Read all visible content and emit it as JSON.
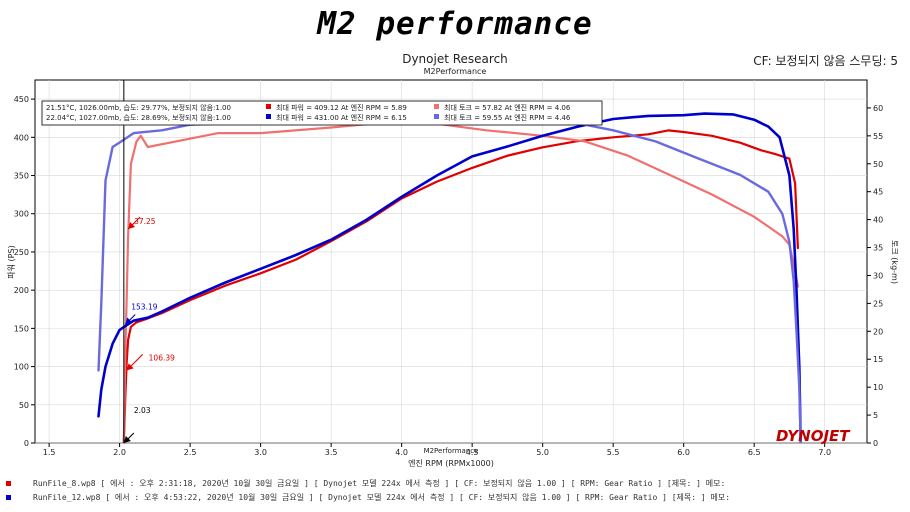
{
  "banner": "M2 performance",
  "subtitle": "Dynojet Research",
  "subtitle2": "M2Performance",
  "cf_label": "CF: 보정되지 않음 스무딩: 5",
  "colors": {
    "red_power": "#e00000",
    "red_torque": "#f07070",
    "blue_power": "#0000cc",
    "blue_torque": "#6a6ae0",
    "axis": "#000000",
    "grid": "#d8d8d8",
    "background": "#ffffff"
  },
  "legend": {
    "rows": [
      {
        "conditions": "21.51°C, 1026.00mb, 습도: 29.77%, 보정되지 않음:1.00",
        "power": "최대 파워 = 409.12 At 엔진 RPM = 5.89",
        "torque": "최대 토크 = 57.82 At 엔진 RPM = 4.06",
        "power_color": "#e00000",
        "torque_color": "#f07070"
      },
      {
        "conditions": "22.04°C, 1027.00mb, 습도: 28.69%, 보정되지 않음:1.00",
        "power": "최대 파워 = 431.00 At 엔진 RPM = 6.15",
        "torque": "최대 토크 = 59.55 At 엔진 RPM = 4.46",
        "power_color": "#0000cc",
        "torque_color": "#6a6ae0"
      }
    ]
  },
  "annotations": [
    {
      "text": "37.25",
      "x": 2.06,
      "y": 280,
      "color": "#e00000"
    },
    {
      "text": "153.19",
      "x": 2.04,
      "y": 155,
      "color": "#0000cc"
    },
    {
      "text": "106.39",
      "x": 2.05,
      "y": 95,
      "color": "#e00000"
    },
    {
      "text": "2.03",
      "x": 2.03,
      "y": 0,
      "color": "#000000"
    }
  ],
  "logo_text": "DYNOJET",
  "footer": [
    {
      "text": "RunFile_8.wp8 [ 에서 : 오후 2:31:18, 2020년 10월 30일 금요일 ] [ Dynojet 모델 224x 에서 측정 ] [ CF: 보정되지 않음 1.00 ] [ RPM: Gear Ratio ] [제목: ] 메모:",
      "color": "#e00000"
    },
    {
      "text": "RunFile_12.wp8 [ 에서 : 오후 4:53:22, 2020년 10월 30일 금요일 ] [ Dynojet 모델 224x 에서 측정 ] [ CF: 보정되지 않음 1.00 ] [ RPM: Gear Ratio ] [제목: ] 메모:",
      "color": "#0000cc"
    }
  ],
  "chart_data": {
    "type": "line",
    "title": "Dynojet Research",
    "subtitle": "M2Performance",
    "xlabel": "엔진 RPM (RPMx1000)",
    "xlabel_top": "M2Performance",
    "ylabel_left": "파워 (PS)",
    "ylabel_right": "토크 (kg-m)",
    "xlim": [
      1.4,
      7.3
    ],
    "ylim_left": [
      0,
      475
    ],
    "ylim_right": [
      0,
      65
    ],
    "x_ticks": [
      1.5,
      2.0,
      2.5,
      3.0,
      3.5,
      4.0,
      4.5,
      5.0,
      5.5,
      6.0,
      6.5,
      7.0
    ],
    "x_tick_labels": [
      "1.5",
      "2.0",
      "2.5",
      "3.0",
      "3.5",
      "4.0",
      "4.5",
      "5.0",
      "5.5",
      "6.0",
      "6.5",
      "7.0"
    ],
    "y_left_ticks": [
      0,
      50,
      100,
      150,
      200,
      250,
      300,
      350,
      400,
      450
    ],
    "y_right_ticks": [
      0,
      5,
      10,
      15,
      20,
      25,
      30,
      35,
      40,
      45,
      50,
      55,
      60
    ],
    "grid": true,
    "legend_position": "top-left",
    "series": [
      {
        "name": "RunFile_8 파워",
        "axis": "left",
        "color": "#e00000",
        "width": 2.2,
        "points": [
          [
            2.03,
            0
          ],
          [
            2.04,
            60
          ],
          [
            2.05,
            106
          ],
          [
            2.06,
            135
          ],
          [
            2.08,
            152
          ],
          [
            2.12,
            158
          ],
          [
            2.2,
            163
          ],
          [
            2.3,
            170
          ],
          [
            2.5,
            187
          ],
          [
            2.75,
            206
          ],
          [
            3.0,
            222
          ],
          [
            3.25,
            240
          ],
          [
            3.5,
            264
          ],
          [
            3.75,
            290
          ],
          [
            4.0,
            320
          ],
          [
            4.25,
            342
          ],
          [
            4.5,
            360
          ],
          [
            4.75,
            376
          ],
          [
            5.0,
            387
          ],
          [
            5.25,
            395
          ],
          [
            5.5,
            400
          ],
          [
            5.75,
            404
          ],
          [
            5.89,
            409
          ],
          [
            6.0,
            407
          ],
          [
            6.2,
            402
          ],
          [
            6.4,
            393
          ],
          [
            6.55,
            383
          ],
          [
            6.65,
            378
          ],
          [
            6.75,
            372
          ],
          [
            6.79,
            340
          ],
          [
            6.81,
            255
          ]
        ]
      },
      {
        "name": "RunFile_8 토크",
        "axis": "right",
        "color": "#f07070",
        "width": 2.2,
        "points": [
          [
            2.03,
            0
          ],
          [
            2.04,
            16
          ],
          [
            2.05,
            26
          ],
          [
            2.06,
            37
          ],
          [
            2.08,
            50
          ],
          [
            2.12,
            54
          ],
          [
            2.15,
            55
          ],
          [
            2.2,
            53
          ],
          [
            2.4,
            54
          ],
          [
            2.7,
            55.5
          ],
          [
            3.0,
            55.5
          ],
          [
            3.5,
            56.5
          ],
          [
            4.06,
            57.8
          ],
          [
            4.3,
            57
          ],
          [
            4.6,
            56
          ],
          [
            5.0,
            55
          ],
          [
            5.3,
            54
          ],
          [
            5.6,
            51.5
          ],
          [
            5.9,
            48
          ],
          [
            6.2,
            44.5
          ],
          [
            6.5,
            40.5
          ],
          [
            6.7,
            37
          ],
          [
            6.75,
            35.5
          ],
          [
            6.78,
            32
          ],
          [
            6.81,
            28
          ]
        ]
      },
      {
        "name": "RunFile_12 파워",
        "axis": "left",
        "color": "#0000cc",
        "width": 2.6,
        "points": [
          [
            1.85,
            35
          ],
          [
            1.87,
            70
          ],
          [
            1.9,
            100
          ],
          [
            1.95,
            130
          ],
          [
            2.0,
            148
          ],
          [
            2.04,
            153
          ],
          [
            2.1,
            160
          ],
          [
            2.2,
            164
          ],
          [
            2.3,
            172
          ],
          [
            2.5,
            190
          ],
          [
            2.75,
            210
          ],
          [
            3.0,
            228
          ],
          [
            3.25,
            246
          ],
          [
            3.5,
            266
          ],
          [
            3.75,
            292
          ],
          [
            4.0,
            322
          ],
          [
            4.25,
            350
          ],
          [
            4.5,
            375
          ],
          [
            4.75,
            388
          ],
          [
            5.0,
            402
          ],
          [
            5.25,
            414
          ],
          [
            5.5,
            424
          ],
          [
            5.75,
            428
          ],
          [
            6.0,
            429
          ],
          [
            6.15,
            431
          ],
          [
            6.35,
            430
          ],
          [
            6.5,
            423
          ],
          [
            6.6,
            414
          ],
          [
            6.68,
            400
          ],
          [
            6.75,
            350
          ],
          [
            6.78,
            280
          ],
          [
            6.8,
            200
          ],
          [
            6.82,
            100
          ],
          [
            6.83,
            0
          ]
        ]
      },
      {
        "name": "RunFile_12 토크",
        "axis": "right",
        "color": "#6a6ae0",
        "width": 2.4,
        "points": [
          [
            1.85,
            13
          ],
          [
            1.87,
            25
          ],
          [
            1.9,
            47
          ],
          [
            1.95,
            53
          ],
          [
            2.0,
            53.8
          ],
          [
            2.1,
            55.5
          ],
          [
            2.3,
            56
          ],
          [
            2.5,
            57
          ],
          [
            3.0,
            57.4
          ],
          [
            3.5,
            58
          ],
          [
            4.0,
            59
          ],
          [
            4.46,
            59.5
          ],
          [
            4.8,
            58.5
          ],
          [
            5.2,
            57.5
          ],
          [
            5.5,
            56
          ],
          [
            5.8,
            54
          ],
          [
            6.1,
            51
          ],
          [
            6.4,
            48
          ],
          [
            6.6,
            45
          ],
          [
            6.7,
            41
          ],
          [
            6.75,
            36
          ],
          [
            6.78,
            29
          ],
          [
            6.8,
            20
          ],
          [
            6.82,
            10
          ],
          [
            6.83,
            0
          ]
        ]
      }
    ]
  }
}
